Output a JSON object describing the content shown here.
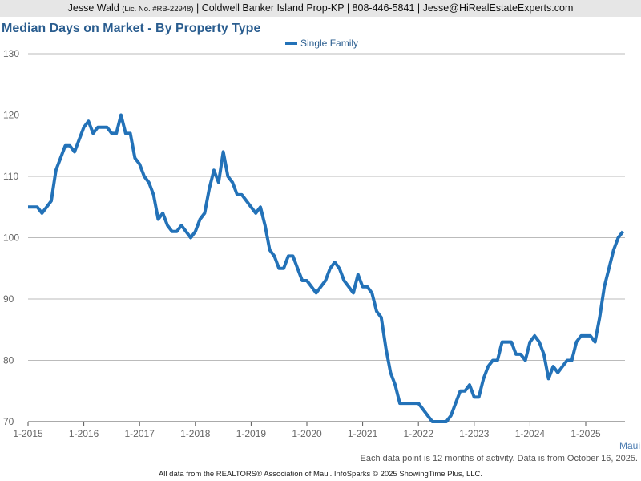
{
  "header": {
    "name": "Jesse Wald",
    "license": "(Lic. No. #RB-22948)",
    "company": "| Coldwell Banker Island Prop-KP |",
    "phone": "808-446-5841 |",
    "email": "Jesse@HiRealEstateExperts.com"
  },
  "chart_data": {
    "type": "line",
    "title": "Median Days on Market - By Property Type",
    "area_label": "Maui",
    "note": "Each data point is 12 months of activity. Data is from October 16, 2025.",
    "categories": [
      "1-2015",
      null,
      null,
      null,
      null,
      null,
      null,
      null,
      null,
      null,
      null,
      null,
      "1-2016",
      null,
      null,
      null,
      null,
      null,
      null,
      null,
      null,
      null,
      null,
      null,
      "1-2017",
      null,
      null,
      null,
      null,
      null,
      null,
      null,
      null,
      null,
      null,
      null,
      "1-2018",
      null,
      null,
      null,
      null,
      null,
      null,
      null,
      null,
      null,
      null,
      null,
      "1-2019",
      null,
      null,
      null,
      null,
      null,
      null,
      null,
      null,
      null,
      null,
      null,
      "1-2020",
      null,
      null,
      null,
      null,
      null,
      null,
      null,
      null,
      null,
      null,
      null,
      "1-2021",
      null,
      null,
      null,
      null,
      null,
      null,
      null,
      null,
      null,
      null,
      null,
      "1-2022",
      null,
      null,
      null,
      null,
      null,
      null,
      null,
      null,
      null,
      null,
      null,
      "1-2023",
      null,
      null,
      null,
      null,
      null,
      null,
      null,
      null,
      null,
      null,
      null,
      "1-2024",
      null,
      null,
      null,
      null,
      null,
      null,
      null,
      null,
      null,
      null,
      null,
      "1-2025",
      null,
      null,
      null,
      null,
      null,
      null,
      null,
      null
    ],
    "series": [
      {
        "name": "Single Family",
        "color": "#2372b8",
        "values": [
          105,
          105,
          105,
          104,
          105,
          106,
          111,
          113,
          115,
          115,
          114,
          116,
          118,
          119,
          117,
          118,
          118,
          118,
          117,
          117,
          120,
          117,
          117,
          113,
          112,
          110,
          109,
          107,
          103,
          104,
          102,
          101,
          101,
          102,
          101,
          100,
          101,
          103,
          104,
          108,
          111,
          109,
          114,
          110,
          109,
          107,
          107,
          106,
          105,
          104,
          105,
          102,
          98,
          97,
          95,
          95,
          97,
          97,
          95,
          93,
          93,
          92,
          91,
          92,
          93,
          95,
          96,
          95,
          93,
          92,
          91,
          94,
          92,
          92,
          91,
          88,
          87,
          82,
          78,
          76,
          73,
          73,
          73,
          73,
          73,
          72,
          71,
          70,
          70,
          70,
          70,
          71,
          73,
          75,
          75,
          76,
          74,
          74,
          77,
          79,
          80,
          80,
          83,
          83,
          83,
          81,
          81,
          80,
          83,
          84,
          83,
          81,
          77,
          79,
          78,
          79,
          80,
          80,
          83,
          84,
          84,
          84,
          83,
          87,
          92,
          95,
          98,
          100,
          101
        ]
      }
    ],
    "ylim": [
      70,
      130
    ],
    "yticks": [
      70,
      80,
      90,
      100,
      110,
      120,
      130
    ],
    "grid": true
  },
  "footer": "All data from the REALTORS® Association of Maui. InfoSparks © 2025 ShowingTime Plus, LLC."
}
